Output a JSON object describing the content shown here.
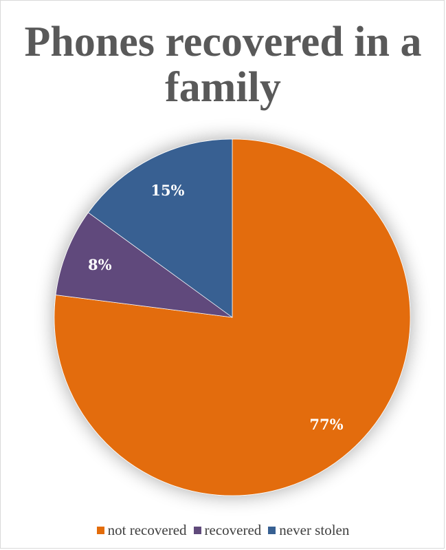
{
  "chart_data": {
    "type": "pie",
    "title": "Phones recovered in a family",
    "categories": [
      "not recovered",
      "recovered",
      "never stolen"
    ],
    "values": [
      77,
      8,
      15
    ],
    "labels": [
      "77%",
      "8%",
      "15%"
    ],
    "colors": [
      "#E36C0A",
      "#604A7B",
      "#376092"
    ],
    "legend_position": "bottom",
    "start_angle": "12 o'clock, clockwise"
  }
}
